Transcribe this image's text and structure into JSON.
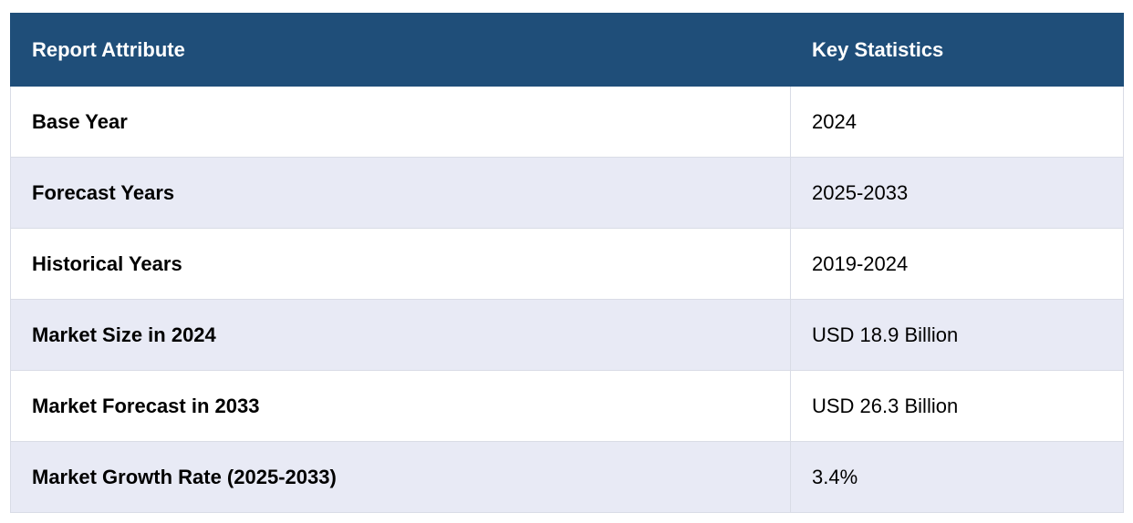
{
  "table": {
    "headers": [
      "Report Attribute",
      "Key Statistics"
    ],
    "rows": [
      [
        "Base Year",
        "2024"
      ],
      [
        "Forecast Years",
        "2025-2033"
      ],
      [
        "Historical Years",
        "2019-2024"
      ],
      [
        "Market Size in 2024",
        "USD 18.9 Billion"
      ],
      [
        "Market Forecast in 2033",
        "USD 26.3 Billion"
      ],
      [
        "Market Growth Rate (2025-2033)",
        "3.4%"
      ]
    ]
  },
  "colors": {
    "header_bg": "#1f4e79",
    "header_text": "#ffffff",
    "row_alt_bg": "#e8eaf5",
    "row_bg": "#ffffff",
    "border": "#d9dce6"
  }
}
